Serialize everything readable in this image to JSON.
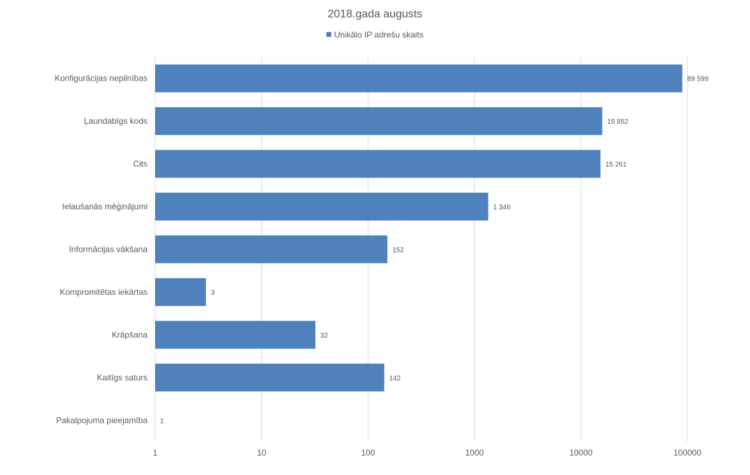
{
  "chart_data": {
    "type": "bar",
    "orientation": "horizontal",
    "title": "2018.gada augusts",
    "legend": {
      "position": "top-center"
    },
    "x_scale": "log",
    "xlim": [
      1,
      100000
    ],
    "x_ticks": [
      "1",
      "10",
      "100",
      "1000",
      "10000",
      "100000"
    ],
    "x_tick_values": [
      1,
      10,
      100,
      1000,
      10000,
      100000
    ],
    "gridlines": "vertical",
    "categories": [
      "Konfigurācijas nepilnības",
      "Ļaundabīgs kods",
      "Cits",
      "Ielaušanās mēģinājumi",
      "Informācijas vākšana",
      "Kompromitētas iekārtas",
      "Krāpšana",
      "Kaitīgs saturs",
      "Pakalpojuma pieejamība"
    ],
    "series": [
      {
        "name": "Unikālo IP adrešu skaits",
        "color": "#4f81bd",
        "values": [
          89599,
          15852,
          15261,
          1346,
          152,
          3,
          32,
          142,
          1
        ],
        "data_labels": [
          "89 599",
          "15 852",
          "15 261",
          "1 346",
          "152",
          "3",
          "32",
          "142",
          "1"
        ]
      }
    ]
  }
}
